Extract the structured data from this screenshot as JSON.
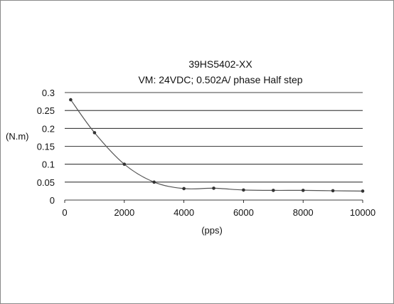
{
  "chart_data": {
    "type": "line",
    "title": "39HS5402-XX",
    "subtitle": "VM: 24VDC; 0.502A/ phase Half step",
    "xlabel": "(pps)",
    "ylabel": "(N.m)",
    "xlim": [
      0,
      10000
    ],
    "ylim": [
      0,
      0.3
    ],
    "x_ticks": [
      0,
      2000,
      4000,
      6000,
      8000,
      10000
    ],
    "y_ticks": [
      0,
      0.05,
      0.1,
      0.15,
      0.2,
      0.25,
      0.3
    ],
    "x_tick_labels": [
      "0",
      "2000",
      "4000",
      "6000",
      "8000",
      "10000"
    ],
    "y_tick_labels": [
      "0",
      "0.05",
      "0.1",
      "0.15",
      "0.2",
      "0.25",
      "0.3"
    ],
    "grid": "horizontal",
    "legend": "none",
    "series": [
      {
        "x": [
          200,
          1000,
          2000,
          3000,
          4000,
          5000,
          6000,
          7000,
          8000,
          9000,
          10000
        ],
        "y": [
          0.28,
          0.188,
          0.1,
          0.05,
          0.032,
          0.033,
          0.028,
          0.027,
          0.027,
          0.026,
          0.025
        ]
      }
    ],
    "colors": {
      "line": "#555555",
      "marker": "#333333",
      "grid": "#000000"
    }
  }
}
